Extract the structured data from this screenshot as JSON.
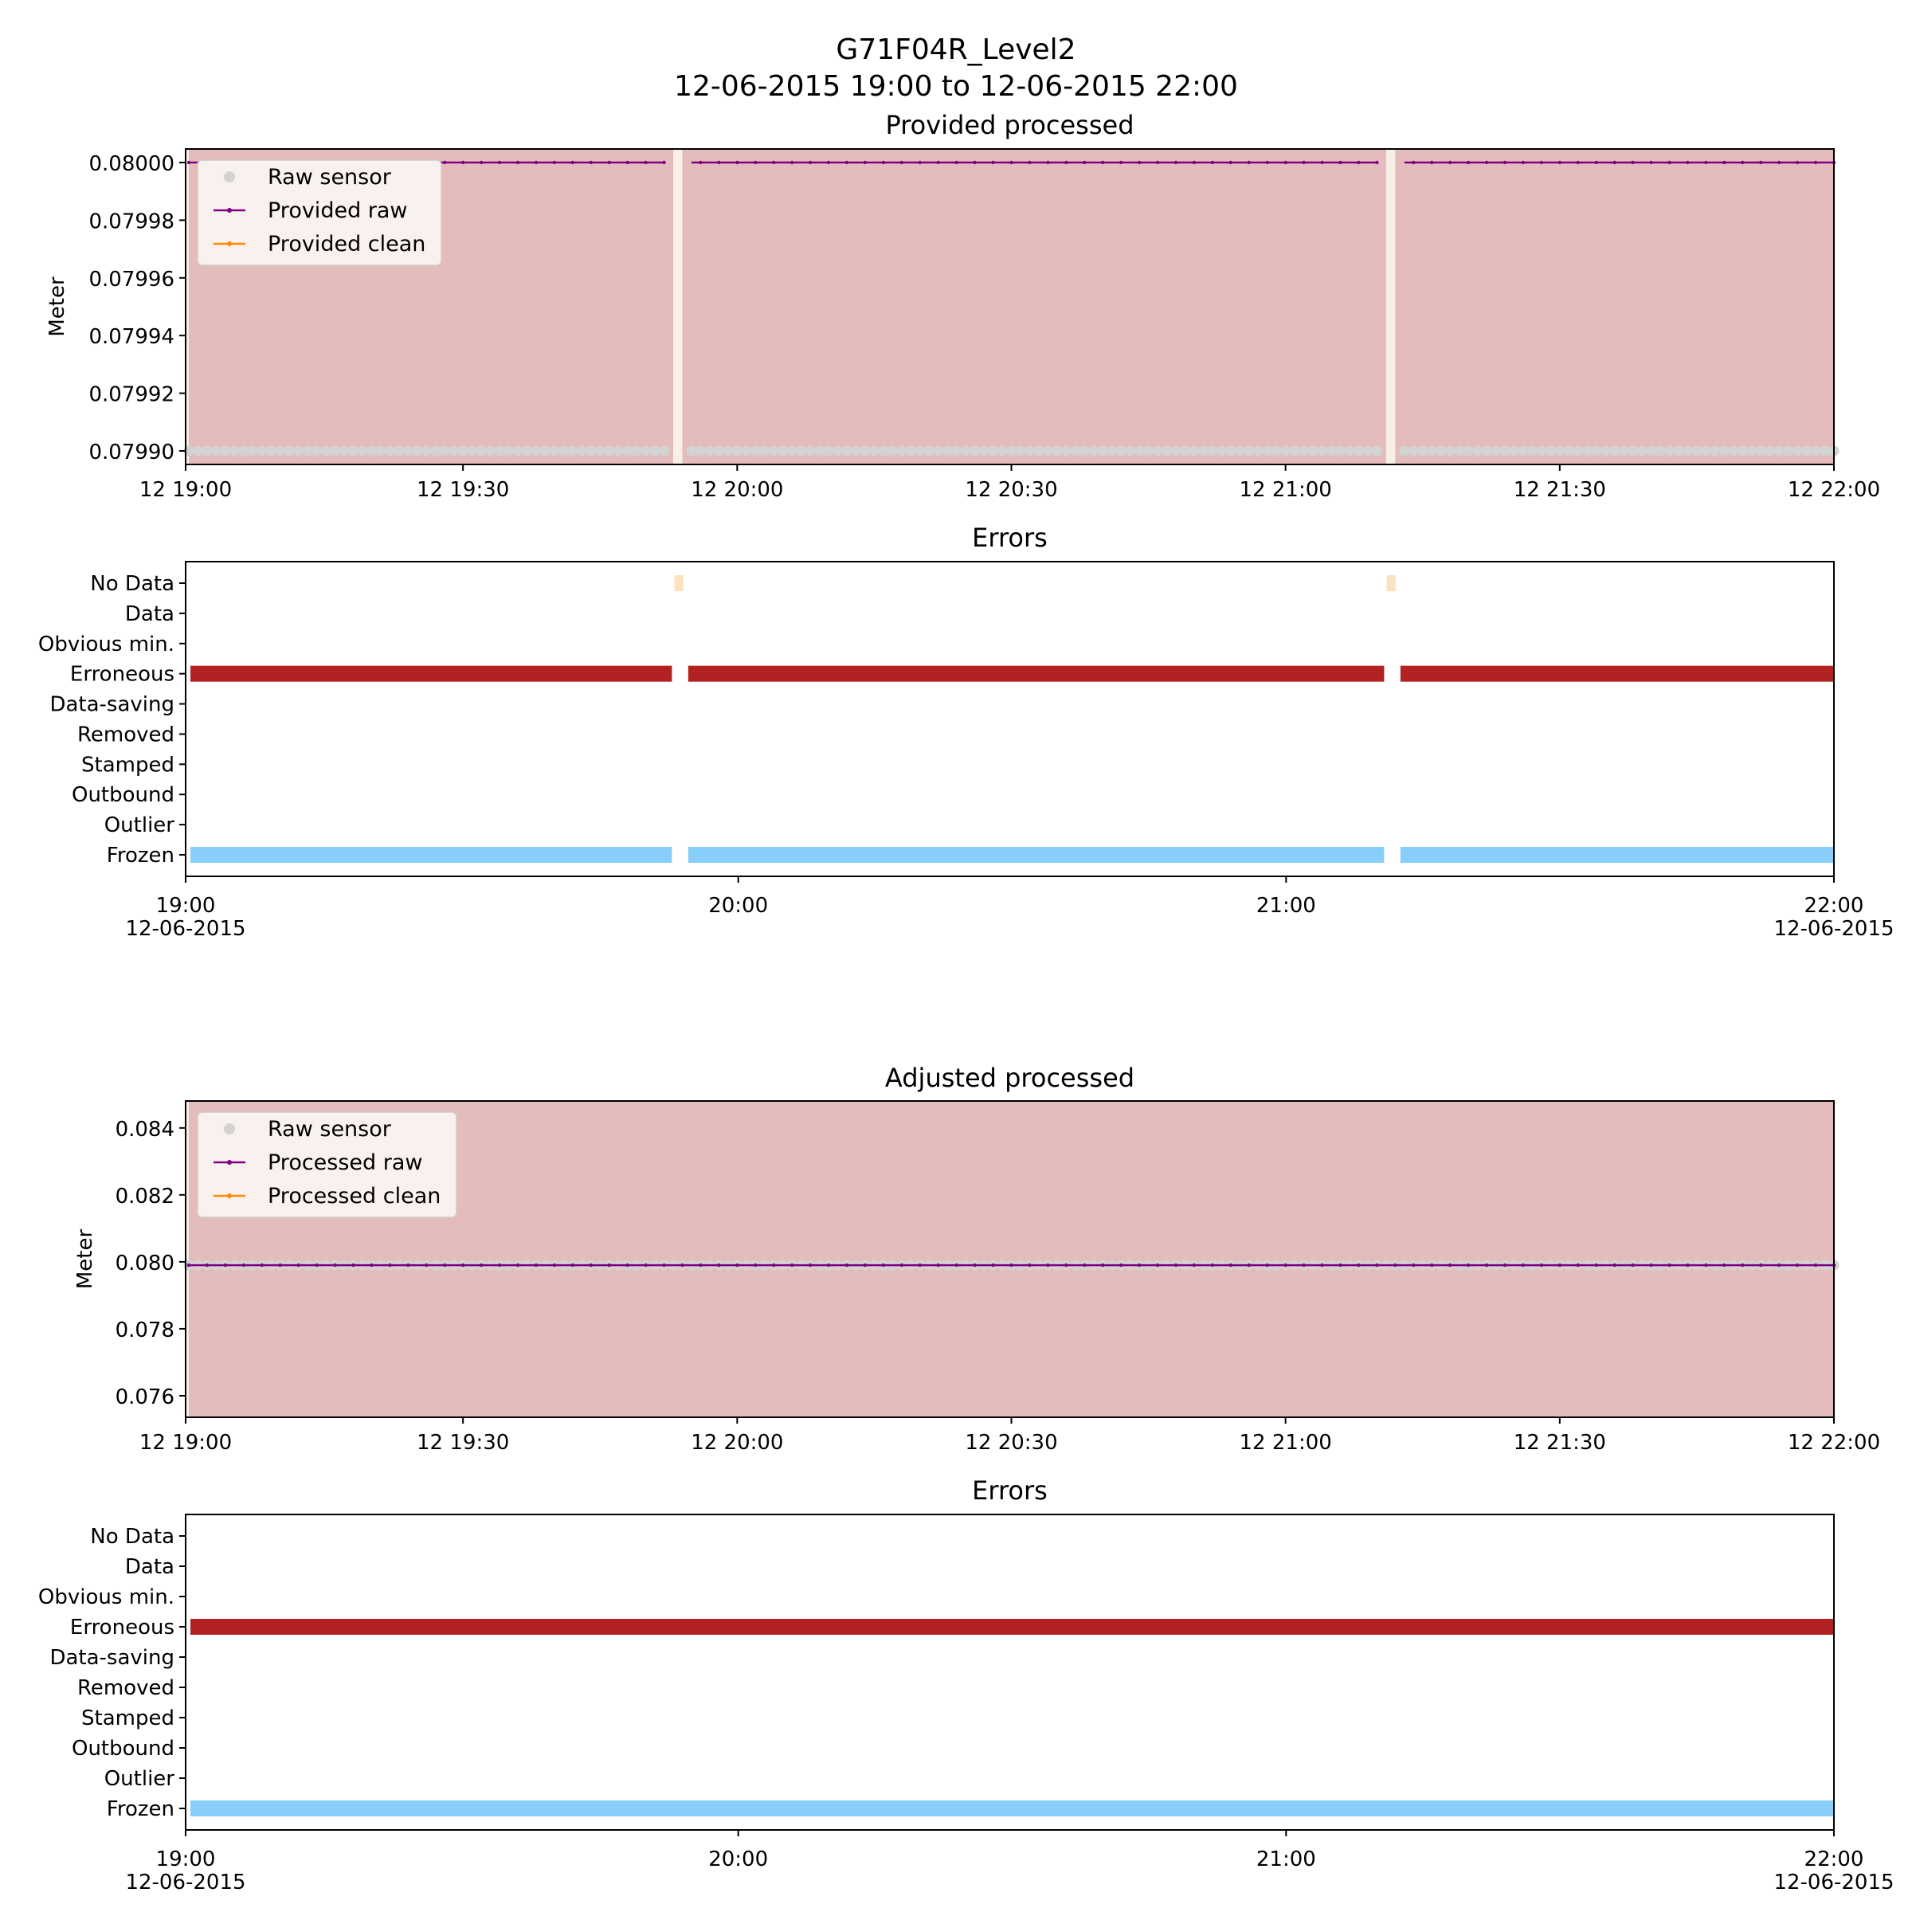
{
  "figure": {
    "title_line1": "G71F04R_Level2",
    "title_line2": "12-06-2015 19:00 to 12-06-2015 22:00"
  },
  "colors": {
    "raw_sensor": "#d3d3d3",
    "raw_line": "#800080",
    "clean_line": "#ff8c00",
    "error_shading": "#e5bcbc",
    "erroneous_bar": "#b22222",
    "frozen_bar": "#87cefa",
    "no_data_bar": "#fbe3c2"
  },
  "chart_data": [
    {
      "id": "provided",
      "type": "line",
      "title": "Provided processed",
      "ylabel": "Meter",
      "xlabel": "",
      "x_range": [
        "2015-06-12 19:00",
        "2015-06-12 22:00"
      ],
      "xtick_labels": [
        "12 19:00",
        "12 19:30",
        "12 20:00",
        "12 20:30",
        "12 21:00",
        "12 21:30",
        "12 22:00"
      ],
      "ylim": [
        0.0799,
        0.08
      ],
      "yticks": [
        0.0799,
        0.07992,
        0.07994,
        0.07996,
        0.07998,
        0.08
      ],
      "ytick_labels": [
        "0.07990",
        "0.07992",
        "0.07994",
        "0.07996",
        "0.07998",
        "0.08000"
      ],
      "grid": false,
      "legend_position": "top-left",
      "sampling": "1 minute",
      "gaps": [
        [
          "2015-06-12 19:53",
          "2015-06-12 19:54"
        ],
        [
          "2015-06-12 21:11",
          "2015-06-12 21:12"
        ]
      ],
      "series": [
        {
          "name": "Raw sensor",
          "style": "scatter",
          "constant_value": 0.0799
        },
        {
          "name": "Provided raw",
          "style": "line-marker",
          "constant_value": 0.08
        },
        {
          "name": "Provided clean",
          "style": "line-marker",
          "values": []
        }
      ],
      "shaded_error_spans": [
        [
          "2015-06-12 19:00",
          "2015-06-12 19:53"
        ],
        [
          "2015-06-12 19:54",
          "2015-06-12 21:11"
        ],
        [
          "2015-06-12 21:12",
          "2015-06-12 22:00"
        ]
      ]
    },
    {
      "id": "provided-errors",
      "type": "bar",
      "title": "Errors",
      "categories": [
        "No Data",
        "Data",
        "Obvious min.",
        "Erroneous",
        "Data-saving",
        "Removed",
        "Stamped",
        "Outbound",
        "Outlier",
        "Frozen"
      ],
      "xtick_labels": [
        {
          "time": "19:00",
          "date": "12-06-2015"
        },
        {
          "time": "20:00",
          "date": ""
        },
        {
          "time": "21:00",
          "date": ""
        },
        {
          "time": "22:00",
          "date": "12-06-2015"
        }
      ],
      "spans": [
        {
          "category": "No Data",
          "intervals": [
            [
              "2015-06-12 19:53",
              "2015-06-12 19:54"
            ],
            [
              "2015-06-12 21:11",
              "2015-06-12 21:12"
            ]
          ]
        },
        {
          "category": "Erroneous",
          "intervals": [
            [
              "2015-06-12 19:00",
              "2015-06-12 19:53"
            ],
            [
              "2015-06-12 19:54",
              "2015-06-12 21:11"
            ],
            [
              "2015-06-12 21:12",
              "2015-06-12 22:00"
            ]
          ]
        },
        {
          "category": "Frozen",
          "intervals": [
            [
              "2015-06-12 19:00",
              "2015-06-12 19:53"
            ],
            [
              "2015-06-12 19:54",
              "2015-06-12 21:11"
            ],
            [
              "2015-06-12 21:12",
              "2015-06-12 22:00"
            ]
          ]
        }
      ]
    },
    {
      "id": "adjusted",
      "type": "line",
      "title": "Adjusted processed",
      "ylabel": "Meter",
      "xlabel": "",
      "x_range": [
        "2015-06-12 19:00",
        "2015-06-12 22:00"
      ],
      "xtick_labels": [
        "12 19:00",
        "12 19:30",
        "12 20:00",
        "12 20:30",
        "12 21:00",
        "12 21:30",
        "12 22:00"
      ],
      "ylim": [
        0.0755,
        0.0844
      ],
      "yticks": [
        0.076,
        0.078,
        0.08,
        0.082,
        0.084
      ],
      "ytick_labels": [
        "0.076",
        "0.078",
        "0.080",
        "0.082",
        "0.084"
      ],
      "grid": false,
      "legend_position": "top-left",
      "sampling": "1 minute",
      "series": [
        {
          "name": "Raw sensor",
          "style": "scatter",
          "constant_value": 0.0799
        },
        {
          "name": "Processed raw",
          "style": "line-marker",
          "constant_value": 0.0799
        },
        {
          "name": "Processed clean",
          "style": "line-marker",
          "values": []
        }
      ],
      "shaded_error_spans": [
        [
          "2015-06-12 19:00",
          "2015-06-12 22:00"
        ]
      ]
    },
    {
      "id": "adjusted-errors",
      "type": "bar",
      "title": "Errors",
      "categories": [
        "No Data",
        "Data",
        "Obvious min.",
        "Erroneous",
        "Data-saving",
        "Removed",
        "Stamped",
        "Outbound",
        "Outlier",
        "Frozen"
      ],
      "xtick_labels": [
        {
          "time": "19:00",
          "date": "12-06-2015"
        },
        {
          "time": "20:00",
          "date": ""
        },
        {
          "time": "21:00",
          "date": ""
        },
        {
          "time": "22:00",
          "date": "12-06-2015"
        }
      ],
      "spans": [
        {
          "category": "Erroneous",
          "intervals": [
            [
              "2015-06-12 19:00",
              "2015-06-12 22:00"
            ]
          ]
        },
        {
          "category": "Frozen",
          "intervals": [
            [
              "2015-06-12 19:00",
              "2015-06-12 22:00"
            ]
          ]
        }
      ]
    }
  ]
}
